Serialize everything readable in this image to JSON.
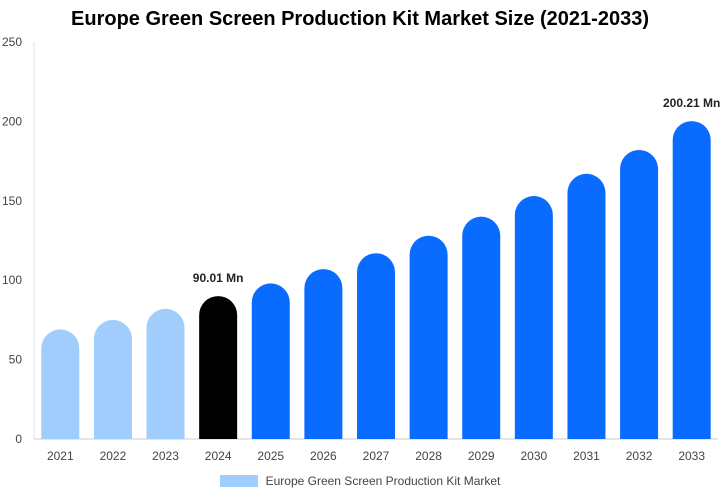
{
  "chart_data": {
    "type": "bar",
    "title": "Europe Green Screen Production Kit Market Size (2021-2033)",
    "categories": [
      "2021",
      "2022",
      "2023",
      "2024",
      "2025",
      "2026",
      "2027",
      "2028",
      "2029",
      "2030",
      "2031",
      "2032",
      "2033"
    ],
    "series": [
      {
        "name": "Europe Green Screen Production Kit Market",
        "values": [
          69,
          75,
          82,
          90.01,
          98,
          107,
          117,
          128,
          140,
          153,
          167,
          182,
          200.21
        ]
      }
    ],
    "value_labels": {
      "3": "90.01 Mn",
      "12": "200.21 Mn"
    },
    "ylim": [
      0,
      250
    ],
    "yticks": [
      0,
      50,
      100,
      150,
      200,
      250
    ],
    "grid": false,
    "legend_position": "bottom",
    "colors": {
      "historic": "#a0cdfc",
      "current": "#000000",
      "forecast": "#0a6cff"
    },
    "color_groups": [
      "historic",
      "historic",
      "historic",
      "current",
      "forecast",
      "forecast",
      "forecast",
      "forecast",
      "forecast",
      "forecast",
      "forecast",
      "forecast",
      "forecast"
    ]
  }
}
